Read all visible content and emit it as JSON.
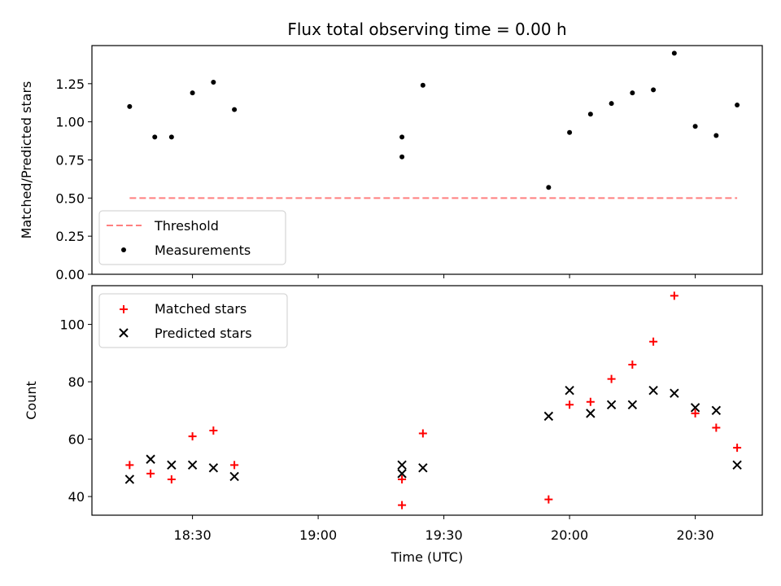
{
  "figure": {
    "title": "Flux total observing time = 0.00 h",
    "xlabel": "Time (UTC)"
  },
  "colors": {
    "threshold": "#ff7f7f",
    "measurements": "#000000",
    "matched": "#ff0000",
    "predicted": "#000000"
  },
  "chart_data": [
    {
      "type": "scatter",
      "ylabel": "Matched/Predicted stars",
      "xlim": [
        "18:06",
        "20:46"
      ],
      "ylim": [
        0,
        1.5
      ],
      "yticks": [
        0,
        0.25,
        0.5,
        0.75,
        1.0,
        1.25
      ],
      "ytick_labels": [
        "0.00",
        "0.25",
        "0.50",
        "0.75",
        "1.00",
        "1.25"
      ],
      "legend_position": "lower-left",
      "series": [
        {
          "name": "Threshold",
          "style": "dashed-line",
          "x": [
            "18:15",
            "20:40"
          ],
          "y": [
            0.5,
            0.5
          ]
        },
        {
          "name": "Measurements",
          "style": "dot",
          "x": [
            "18:15",
            "18:21",
            "18:25",
            "18:30",
            "18:35",
            "18:40",
            "19:20",
            "19:20",
            "19:25",
            "19:55",
            "20:00",
            "20:05",
            "20:10",
            "20:15",
            "20:20",
            "20:25",
            "20:30",
            "20:35",
            "20:40"
          ],
          "y": [
            1.1,
            0.9,
            0.9,
            1.19,
            1.26,
            1.08,
            0.77,
            0.9,
            1.24,
            0.57,
            0.93,
            1.05,
            1.12,
            1.19,
            1.21,
            1.45,
            0.97,
            0.91,
            1.11
          ]
        }
      ]
    },
    {
      "type": "scatter",
      "ylabel": "Count",
      "xlim": [
        "18:06",
        "20:46"
      ],
      "ylim": [
        33.5,
        113.5
      ],
      "yticks": [
        40,
        60,
        80,
        100
      ],
      "ytick_labels": [
        "40",
        "60",
        "80",
        "100"
      ],
      "xticks": [
        "18:30",
        "19:00",
        "19:30",
        "20:00",
        "20:30"
      ],
      "xtick_labels": [
        "18:30",
        "19:00",
        "19:30",
        "20:00",
        "20:30"
      ],
      "legend_position": "upper-left",
      "series": [
        {
          "name": "Matched stars",
          "marker": "plus",
          "x": [
            "18:15",
            "18:20",
            "18:25",
            "18:30",
            "18:35",
            "18:40",
            "19:20",
            "19:20",
            "19:25",
            "19:55",
            "20:00",
            "20:05",
            "20:10",
            "20:15",
            "20:20",
            "20:25",
            "20:30",
            "20:35",
            "20:40"
          ],
          "y": [
            51,
            48,
            46,
            61,
            63,
            51,
            37,
            46,
            62,
            39,
            72,
            73,
            81,
            86,
            94,
            110,
            69,
            64,
            57
          ]
        },
        {
          "name": "Predicted stars",
          "marker": "x",
          "x": [
            "18:15",
            "18:20",
            "18:25",
            "18:30",
            "18:35",
            "18:40",
            "19:20",
            "19:20",
            "19:25",
            "19:55",
            "20:00",
            "20:05",
            "20:10",
            "20:15",
            "20:20",
            "20:25",
            "20:30",
            "20:35",
            "20:40"
          ],
          "y": [
            46,
            53,
            51,
            51,
            50,
            47,
            48,
            51,
            50,
            68,
            77,
            69,
            72,
            72,
            77,
            76,
            71,
            70,
            51
          ]
        }
      ]
    }
  ]
}
